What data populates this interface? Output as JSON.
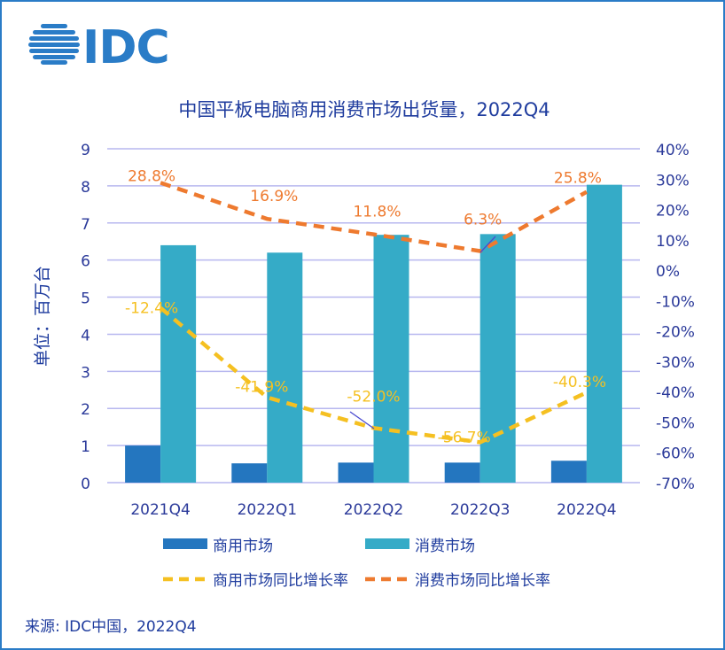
{
  "logo": {
    "text": "IDC",
    "color": "#2a7cc7"
  },
  "chart_data": {
    "type": "bar",
    "title": "中国平板电脑商用消费市场出货量，2022Q4",
    "ylabel": "单位：百万台",
    "categories": [
      "2021Q4",
      "2022Q1",
      "2022Q2",
      "2022Q3",
      "2022Q4"
    ],
    "ylim": [
      0,
      9
    ],
    "yticks": [
      "0",
      "1",
      "2",
      "3",
      "4",
      "5",
      "6",
      "7",
      "8",
      "9"
    ],
    "y2lim": [
      -70,
      40
    ],
    "y2ticks": [
      "-70%",
      "-60%",
      "-50%",
      "-40%",
      "-30%",
      "-20%",
      "-10%",
      "0%",
      "10%",
      "20%",
      "30%",
      "40%"
    ],
    "grid": true,
    "legend_position": "bottom",
    "series": [
      {
        "name": "商用市场",
        "kind": "bar",
        "axis": "left",
        "color": "#2476bf",
        "values": [
          1.0,
          0.52,
          0.54,
          0.54,
          0.59
        ]
      },
      {
        "name": "消费市场",
        "kind": "bar",
        "axis": "left",
        "color": "#35abc7",
        "values": [
          6.4,
          6.2,
          6.68,
          6.7,
          8.03
        ]
      },
      {
        "name": "商用市场同比增长率",
        "kind": "line",
        "style": "dashed",
        "axis": "right",
        "color": "#f5c021",
        "values": [
          -12.4,
          -41.9,
          -52.0,
          -56.7,
          -40.3
        ],
        "labels": [
          "-12.4%",
          "-41.9%",
          "-52.0%",
          "-56.7%",
          "-40.3%"
        ]
      },
      {
        "name": "消费市场同比增长率",
        "kind": "line",
        "style": "dashed",
        "axis": "right",
        "color": "#ee7a2f",
        "values": [
          28.8,
          16.9,
          11.8,
          6.3,
          25.8
        ],
        "labels": [
          "28.8%",
          "16.9%",
          "11.8%",
          "6.3%",
          "25.8%"
        ]
      }
    ]
  },
  "source": "来源: IDC中国，2022Q4",
  "colors": {
    "axis_text": "#2b3a9a",
    "title": "#1f3c9e",
    "grid": "#b7b7ef"
  }
}
